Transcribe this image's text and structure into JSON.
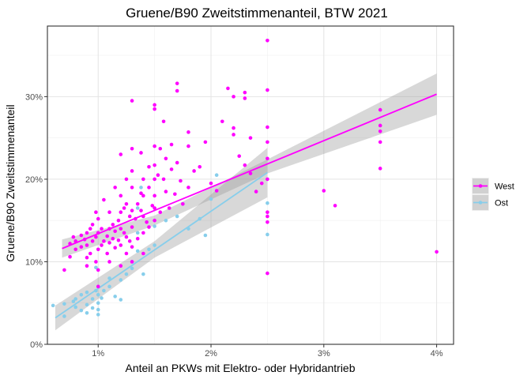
{
  "chart_data": {
    "type": "scatter",
    "title": "Gruene/B90 Zweitstimmenanteil, BTW 2021",
    "xlabel": "Anteil an PKWs mit Elektro- oder Hybridantrieb",
    "ylabel": "Gruene/B90 Zweitstimmenanteil",
    "xlim": [
      0.0055,
      0.0415
    ],
    "ylim": [
      0.0,
      0.3855
    ],
    "x_ticks": [
      0.01,
      0.02,
      0.03,
      0.04
    ],
    "x_tick_labels": [
      "1%",
      "2%",
      "3%",
      "4%"
    ],
    "y_ticks": [
      0.0,
      0.1,
      0.2,
      0.3
    ],
    "y_tick_labels": [
      "0%",
      "10%",
      "20%",
      "30%"
    ],
    "grid": true,
    "legend_position": "right",
    "series": [
      {
        "name": "West",
        "color": "#ff00ff",
        "points": [
          [
            0.007,
            0.09
          ],
          [
            0.0075,
            0.106
          ],
          [
            0.0075,
            0.122
          ],
          [
            0.0078,
            0.13
          ],
          [
            0.008,
            0.115
          ],
          [
            0.008,
            0.125
          ],
          [
            0.0085,
            0.118
          ],
          [
            0.0085,
            0.132
          ],
          [
            0.0088,
            0.127
          ],
          [
            0.009,
            0.095
          ],
          [
            0.009,
            0.105
          ],
          [
            0.009,
            0.12
          ],
          [
            0.009,
            0.135
          ],
          [
            0.0093,
            0.14
          ],
          [
            0.0093,
            0.11
          ],
          [
            0.0095,
            0.145
          ],
          [
            0.0095,
            0.125
          ],
          [
            0.0098,
            0.16
          ],
          [
            0.0098,
            0.1
          ],
          [
            0.0098,
            0.13
          ],
          [
            0.01,
            0.135
          ],
          [
            0.01,
            0.115
          ],
          [
            0.01,
            0.152
          ],
          [
            0.01,
            0.09
          ],
          [
            0.01,
            0.07
          ],
          [
            0.0103,
            0.14
          ],
          [
            0.0103,
            0.12
          ],
          [
            0.0105,
            0.175
          ],
          [
            0.0105,
            0.125
          ],
          [
            0.0108,
            0.131
          ],
          [
            0.0108,
            0.11
          ],
          [
            0.011,
            0.16
          ],
          [
            0.011,
            0.14
          ],
          [
            0.011,
            0.123
          ],
          [
            0.011,
            0.1
          ],
          [
            0.0113,
            0.145
          ],
          [
            0.0113,
            0.128
          ],
          [
            0.0115,
            0.19
          ],
          [
            0.0115,
            0.137
          ],
          [
            0.0115,
            0.117
          ],
          [
            0.0118,
            0.15
          ],
          [
            0.0118,
            0.126
          ],
          [
            0.012,
            0.23
          ],
          [
            0.012,
            0.18
          ],
          [
            0.012,
            0.16
          ],
          [
            0.012,
            0.14
          ],
          [
            0.012,
            0.12
          ],
          [
            0.012,
            0.095
          ],
          [
            0.0123,
            0.165
          ],
          [
            0.0123,
            0.135
          ],
          [
            0.0125,
            0.2
          ],
          [
            0.0125,
            0.17
          ],
          [
            0.0125,
            0.13
          ],
          [
            0.0125,
            0.11
          ],
          [
            0.0128,
            0.155
          ],
          [
            0.0128,
            0.125
          ],
          [
            0.013,
            0.295
          ],
          [
            0.013,
            0.237
          ],
          [
            0.013,
            0.21
          ],
          [
            0.013,
            0.19
          ],
          [
            0.013,
            0.162
          ],
          [
            0.013,
            0.142
          ],
          [
            0.013,
            0.118
          ],
          [
            0.013,
            0.1
          ],
          [
            0.0133,
            0.152
          ],
          [
            0.0135,
            0.17
          ],
          [
            0.0135,
            0.128
          ],
          [
            0.0138,
            0.232
          ],
          [
            0.0138,
            0.183
          ],
          [
            0.0138,
            0.162
          ],
          [
            0.014,
            0.2
          ],
          [
            0.014,
            0.18
          ],
          [
            0.014,
            0.155
          ],
          [
            0.014,
            0.135
          ],
          [
            0.014,
            0.11
          ],
          [
            0.0143,
            0.148
          ],
          [
            0.0145,
            0.215
          ],
          [
            0.0145,
            0.19
          ],
          [
            0.0145,
            0.142
          ],
          [
            0.0148,
            0.168
          ],
          [
            0.015,
            0.29
          ],
          [
            0.015,
            0.285
          ],
          [
            0.015,
            0.24
          ],
          [
            0.015,
            0.217
          ],
          [
            0.015,
            0.2
          ],
          [
            0.015,
            0.18
          ],
          [
            0.015,
            0.165
          ],
          [
            0.015,
            0.15
          ],
          [
            0.0153,
            0.205
          ],
          [
            0.0155,
            0.237
          ],
          [
            0.0155,
            0.16
          ],
          [
            0.0158,
            0.27
          ],
          [
            0.0158,
            0.2
          ],
          [
            0.016,
            0.225
          ],
          [
            0.016,
            0.185
          ],
          [
            0.0163,
            0.165
          ],
          [
            0.0165,
            0.242
          ],
          [
            0.0165,
            0.212
          ],
          [
            0.0168,
            0.182
          ],
          [
            0.017,
            0.316
          ],
          [
            0.017,
            0.307
          ],
          [
            0.017,
            0.22
          ],
          [
            0.0173,
            0.198
          ],
          [
            0.0175,
            0.17
          ],
          [
            0.018,
            0.257
          ],
          [
            0.018,
            0.24
          ],
          [
            0.018,
            0.19
          ],
          [
            0.0185,
            0.21
          ],
          [
            0.019,
            0.215
          ],
          [
            0.0195,
            0.245
          ],
          [
            0.02,
            0.195
          ],
          [
            0.0205,
            0.186
          ],
          [
            0.021,
            0.27
          ],
          [
            0.0215,
            0.31
          ],
          [
            0.022,
            0.3
          ],
          [
            0.022,
            0.262
          ],
          [
            0.022,
            0.254
          ],
          [
            0.0225,
            0.228
          ],
          [
            0.023,
            0.305
          ],
          [
            0.023,
            0.298
          ],
          [
            0.023,
            0.217
          ],
          [
            0.0235,
            0.25
          ],
          [
            0.0235,
            0.207
          ],
          [
            0.024,
            0.185
          ],
          [
            0.0245,
            0.195
          ],
          [
            0.025,
            0.368
          ],
          [
            0.025,
            0.308
          ],
          [
            0.025,
            0.263
          ],
          [
            0.025,
            0.245
          ],
          [
            0.025,
            0.225
          ],
          [
            0.025,
            0.2
          ],
          [
            0.025,
            0.16
          ],
          [
            0.025,
            0.155
          ],
          [
            0.025,
            0.148
          ],
          [
            0.025,
            0.086
          ],
          [
            0.03,
            0.186
          ],
          [
            0.031,
            0.168
          ],
          [
            0.035,
            0.284
          ],
          [
            0.035,
            0.265
          ],
          [
            0.035,
            0.258
          ],
          [
            0.035,
            0.245
          ],
          [
            0.035,
            0.213
          ],
          [
            0.04,
            0.112
          ]
        ],
        "fit_line": [
          [
            0.0068,
            0.116
          ],
          [
            0.04,
            0.303
          ]
        ],
        "ci_upper": [
          [
            0.0068,
            0.127
          ],
          [
            0.015,
            0.156
          ],
          [
            0.025,
            0.224
          ],
          [
            0.04,
            0.328
          ]
        ],
        "ci_lower": [
          [
            0.0068,
            0.105
          ],
          [
            0.015,
            0.144
          ],
          [
            0.025,
            0.207
          ],
          [
            0.04,
            0.278
          ]
        ]
      },
      {
        "name": "Ost",
        "color": "#87ceeb",
        "points": [
          [
            0.006,
            0.047
          ],
          [
            0.007,
            0.034
          ],
          [
            0.007,
            0.049
          ],
          [
            0.0078,
            0.052
          ],
          [
            0.008,
            0.045
          ],
          [
            0.008,
            0.055
          ],
          [
            0.0085,
            0.041
          ],
          [
            0.0085,
            0.06
          ],
          [
            0.009,
            0.038
          ],
          [
            0.009,
            0.048
          ],
          [
            0.009,
            0.063
          ],
          [
            0.0095,
            0.044
          ],
          [
            0.0095,
            0.055
          ],
          [
            0.0098,
            0.093
          ],
          [
            0.0098,
            0.065
          ],
          [
            0.01,
            0.036
          ],
          [
            0.01,
            0.042
          ],
          [
            0.01,
            0.05
          ],
          [
            0.01,
            0.06
          ],
          [
            0.01,
            0.07
          ],
          [
            0.0103,
            0.056
          ],
          [
            0.0105,
            0.065
          ],
          [
            0.011,
            0.07
          ],
          [
            0.011,
            0.08
          ],
          [
            0.0115,
            0.058
          ],
          [
            0.012,
            0.054
          ],
          [
            0.012,
            0.078
          ],
          [
            0.0125,
            0.085
          ],
          [
            0.013,
            0.092
          ],
          [
            0.013,
            0.1
          ],
          [
            0.0135,
            0.165
          ],
          [
            0.0135,
            0.135
          ],
          [
            0.0135,
            0.113
          ],
          [
            0.0138,
            0.19
          ],
          [
            0.014,
            0.085
          ],
          [
            0.0145,
            0.115
          ],
          [
            0.015,
            0.143
          ],
          [
            0.015,
            0.12
          ],
          [
            0.016,
            0.15
          ],
          [
            0.017,
            0.155
          ],
          [
            0.0175,
            0.17
          ],
          [
            0.018,
            0.14
          ],
          [
            0.019,
            0.152
          ],
          [
            0.0195,
            0.132
          ],
          [
            0.02,
            0.176
          ],
          [
            0.0205,
            0.205
          ],
          [
            0.025,
            0.133
          ],
          [
            0.025,
            0.171
          ]
        ],
        "fit_line": [
          [
            0.0062,
            0.032
          ],
          [
            0.025,
            0.208
          ]
        ],
        "ci_upper": [
          [
            0.0062,
            0.047
          ],
          [
            0.015,
            0.125
          ],
          [
            0.025,
            0.238
          ]
        ],
        "ci_lower": [
          [
            0.0062,
            0.017
          ],
          [
            0.015,
            0.105
          ],
          [
            0.025,
            0.178
          ]
        ]
      }
    ]
  }
}
